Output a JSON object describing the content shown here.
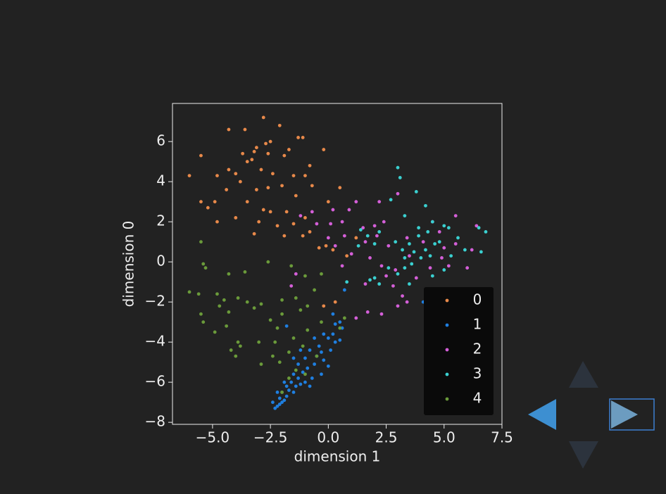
{
  "chart_data": {
    "type": "scatter",
    "xlabel": "dimension 1",
    "ylabel": "dimension 0",
    "xlim": [
      -6.73,
      7.5
    ],
    "ylim": [
      -8.1,
      7.9
    ],
    "xticks": [
      {
        "value": -5,
        "label": "−5.0"
      },
      {
        "value": -2.5,
        "label": "−2.5"
      },
      {
        "value": 0,
        "label": "0.0"
      },
      2.5,
      {
        "value": 5,
        "label": "5.0"
      },
      7.5
    ],
    "yticks": [
      {
        "value": -8,
        "label": "−8"
      },
      {
        "value": -6,
        "label": "−6"
      },
      {
        "value": -4,
        "label": "−4"
      },
      {
        "value": -2,
        "label": "−2"
      },
      0,
      2,
      4,
      6
    ],
    "legend": "lower right",
    "series": [
      {
        "name": "0",
        "color": "#e8894a",
        "x": [
          -2.8,
          -2.1,
          -4.3,
          -3.6,
          -1.3,
          -1.1,
          -2.5,
          -2.7,
          -3.1,
          -3.2,
          -1.7,
          -0.2,
          -5.5,
          -1.9,
          -2.6,
          -3.7,
          -3.5,
          -3.3,
          -0.8,
          -2.9,
          -4.3,
          -4.0,
          -2.4,
          -1.5,
          -6.0,
          -4.8,
          -1.0,
          -3.8,
          -2.0,
          -0.7,
          -3.1,
          -2.6,
          -4.4,
          -1.4,
          -5.5,
          -4.9,
          -3.5,
          -2.8,
          -2.5,
          -5.2,
          -1.8,
          -4.0,
          -3.0,
          -1.0,
          -4.8,
          -2.2,
          -1.5,
          -3.2,
          -1.9,
          -1.1,
          -0.8,
          -0.4,
          0.2,
          0.8,
          1.2,
          0.5,
          0.0,
          -0.1,
          0.3,
          -0.2
        ],
        "y": [
          7.2,
          6.8,
          6.6,
          6.6,
          6.2,
          6.2,
          6.0,
          5.9,
          5.7,
          5.5,
          5.6,
          5.6,
          5.3,
          5.3,
          5.4,
          5.4,
          5.0,
          5.1,
          4.8,
          4.6,
          4.6,
          4.4,
          4.4,
          4.3,
          4.3,
          4.3,
          4.3,
          4.0,
          3.8,
          3.8,
          3.6,
          3.7,
          3.6,
          3.3,
          3.0,
          3.0,
          3.0,
          2.6,
          2.5,
          2.7,
          2.5,
          2.2,
          2.0,
          2.2,
          2.0,
          1.8,
          1.9,
          1.4,
          1.3,
          1.3,
          1.5,
          0.7,
          0.6,
          0.3,
          1.2,
          3.7,
          3.0,
          0.8,
          -2.0,
          -2.2
        ]
      },
      {
        "name": "1",
        "color": "#1f7fe0",
        "x": [
          -2.3,
          -2.2,
          -2.1,
          -2.0,
          -1.9,
          -2.4,
          -2.1,
          -1.8,
          -2.0,
          -1.7,
          -1.5,
          -1.8,
          -1.6,
          -1.4,
          -1.3,
          -1.5,
          -1.2,
          -1.0,
          -0.8,
          -1.1,
          -0.9,
          -1.3,
          -0.7,
          -0.6,
          -1.0,
          -0.5,
          -0.8,
          -0.3,
          -0.2,
          0.0,
          -0.4,
          0.1,
          0.3,
          0.2,
          0.5,
          0.6,
          0.5,
          0.0,
          -0.2,
          0.3,
          -1.5,
          -1.8,
          0.7,
          0.2,
          -0.6,
          -1.2,
          -0.3,
          -2.2,
          -1.9,
          4.1
        ],
        "y": [
          -7.3,
          -7.2,
          -7.1,
          -7.0,
          -6.9,
          -7.0,
          -6.8,
          -6.7,
          -6.5,
          -6.4,
          -6.5,
          -6.2,
          -6.0,
          -6.2,
          -5.8,
          -5.6,
          -6.1,
          -6.0,
          -6.2,
          -5.5,
          -5.3,
          -5.1,
          -5.8,
          -5.1,
          -4.8,
          -4.7,
          -4.4,
          -4.5,
          -4.9,
          -5.2,
          -4.2,
          -4.4,
          -4.0,
          -3.6,
          -3.9,
          -3.3,
          -3.0,
          -3.8,
          -3.6,
          -3.1,
          -4.8,
          -3.2,
          -1.4,
          -2.6,
          -3.8,
          -4.4,
          -5.6,
          -6.5,
          -6.0,
          -2.0
        ]
      },
      {
        "name": "2",
        "color": "#d45fd8",
        "x": [
          -1.2,
          -0.7,
          0.2,
          0.9,
          0.6,
          0.1,
          -0.5,
          1.2,
          2.2,
          3.0,
          2.4,
          1.5,
          0.7,
          0.0,
          1.6,
          2.1,
          2.6,
          3.4,
          1.0,
          0.6,
          1.8,
          2.3,
          2.9,
          3.5,
          4.1,
          4.4,
          5.0,
          5.5,
          6.2,
          5.2,
          4.9,
          6.0,
          4.5,
          3.8,
          2.5,
          1.6,
          2.8,
          3.2,
          1.2,
          1.7,
          2.3,
          3.0,
          3.4,
          5.5,
          6.4,
          -1.4,
          -1.6,
          0.3,
          4.8,
          2.0
        ],
        "y": [
          2.3,
          2.5,
          2.6,
          2.6,
          2.0,
          1.9,
          1.9,
          3.0,
          3.0,
          3.4,
          2.0,
          1.7,
          1.3,
          1.2,
          1.0,
          1.3,
          0.8,
          1.2,
          0.4,
          -0.2,
          0.2,
          -0.2,
          -0.4,
          0.3,
          1.0,
          -0.3,
          0.7,
          2.3,
          0.6,
          -0.2,
          0.2,
          -0.3,
          2.0,
          -0.8,
          -0.7,
          -1.1,
          -1.2,
          -1.7,
          -2.8,
          -2.5,
          -2.6,
          -2.2,
          -2.0,
          0.9,
          1.8,
          -0.6,
          -1.2,
          0.8,
          1.5,
          1.8
        ]
      },
      {
        "name": "3",
        "color": "#3ad0d0",
        "x": [
          3.0,
          3.1,
          3.8,
          2.7,
          4.2,
          3.3,
          4.5,
          5.2,
          6.5,
          6.8,
          5.6,
          4.3,
          3.9,
          4.8,
          3.5,
          3.2,
          3.7,
          4.0,
          3.3,
          2.9,
          3.6,
          4.4,
          3.0,
          2.6,
          2.0,
          1.8,
          2.2,
          3.5,
          4.5,
          5.9,
          6.6,
          1.3,
          1.4,
          1.7,
          2.2,
          5.0,
          4.6,
          5.3,
          5.0,
          3.9,
          2.0,
          0.8,
          3.3,
          4.2
        ],
        "y": [
          4.7,
          4.2,
          3.5,
          3.1,
          2.8,
          2.3,
          2.0,
          1.7,
          1.7,
          1.5,
          1.2,
          1.5,
          1.3,
          1.0,
          0.9,
          0.6,
          0.5,
          0.2,
          0.2,
          1.0,
          -0.1,
          0.3,
          -0.6,
          -0.3,
          -0.8,
          -0.9,
          -1.1,
          -1.1,
          -0.7,
          0.6,
          0.5,
          0.8,
          1.6,
          1.3,
          1.5,
          1.8,
          0.9,
          0.3,
          -0.4,
          1.7,
          0.9,
          -1.0,
          -0.3,
          0.6
        ]
      },
      {
        "name": "4",
        "color": "#6a9a3a",
        "x": [
          -5.5,
          -5.4,
          -5.3,
          -4.3,
          -3.6,
          -2.6,
          -1.6,
          -1.0,
          -0.3,
          -6.0,
          -5.6,
          -4.8,
          -4.5,
          -3.9,
          -3.5,
          -2.9,
          -2.0,
          -1.4,
          -0.6,
          -5.5,
          -4.7,
          -4.3,
          -3.2,
          -2.5,
          -2.0,
          -1.2,
          -0.9,
          -5.4,
          -4.9,
          -4.4,
          -2.2,
          -1.5,
          -0.9,
          -0.3,
          0.5,
          -4.2,
          -3.8,
          -3.9,
          -3.0,
          -2.3,
          -1.7,
          -1.1,
          -0.5,
          -4.0,
          -2.9,
          -2.1,
          -1.4,
          -1.0,
          -2.0,
          -1.7,
          0.7,
          -2.4
        ],
        "y": [
          1.0,
          -0.1,
          -0.3,
          -0.6,
          -0.5,
          0.0,
          -0.2,
          -0.7,
          -0.6,
          -1.5,
          -1.6,
          -1.6,
          -1.9,
          -1.8,
          -2.0,
          -2.1,
          -1.9,
          -1.8,
          -1.4,
          -2.6,
          -2.2,
          -2.5,
          -2.3,
          -2.9,
          -2.6,
          -2.4,
          -2.2,
          -3.0,
          -3.5,
          -3.2,
          -3.3,
          -3.8,
          -3.4,
          -3.0,
          -3.3,
          -4.4,
          -4.2,
          -4.0,
          -4.0,
          -4.0,
          -4.5,
          -4.2,
          -4.7,
          -4.7,
          -5.1,
          -5.0,
          -5.4,
          -5.6,
          -6.5,
          -5.8,
          -2.8,
          -4.7
        ]
      }
    ]
  }
}
